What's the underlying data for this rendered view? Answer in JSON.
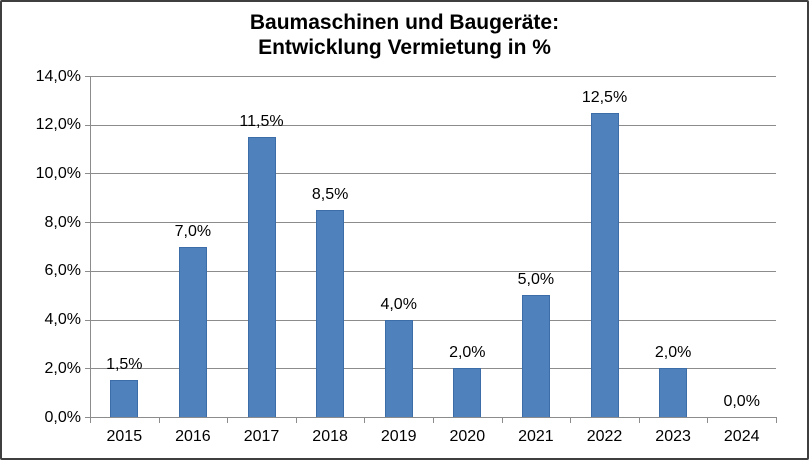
{
  "chart_data": {
    "type": "bar",
    "title": "Baumaschinen und Baugeräte: Entwicklung Vermietung in %",
    "title_lines": [
      "Baumaschinen und Baugeräte:",
      "Entwicklung Vermietung in %"
    ],
    "categories": [
      "2015",
      "2016",
      "2017",
      "2018",
      "2019",
      "2020",
      "2021",
      "2022",
      "2023",
      "2024"
    ],
    "series": [
      {
        "name": "Entwicklung Vermietung",
        "values": [
          1.5,
          7.0,
          11.5,
          8.5,
          4.0,
          2.0,
          5.0,
          12.5,
          2.0,
          0.0
        ],
        "value_labels": [
          "1,5%",
          "7,0%",
          "11,5%",
          "8,5%",
          "4,0%",
          "2,0%",
          "5,0%",
          "12,5%",
          "2,0%",
          "0,0%"
        ]
      }
    ],
    "xlabel": "",
    "ylabel": "",
    "ylim": [
      0,
      14
    ],
    "y_step": 2,
    "y_tick_labels": [
      "0,0%",
      "2,0%",
      "4,0%",
      "6,0%",
      "8,0%",
      "10,0%",
      "12,0%",
      "14,0%"
    ],
    "grid": true,
    "legend_position": "none",
    "colors": {
      "bar": "#4F81BD",
      "bar_border": "#3C6DA8",
      "grid": "#8C8C8C",
      "axis": "#8C8C8C",
      "text": "#000000",
      "background": "#FFFFFF",
      "frame_border": "#3F3F3F"
    }
  }
}
